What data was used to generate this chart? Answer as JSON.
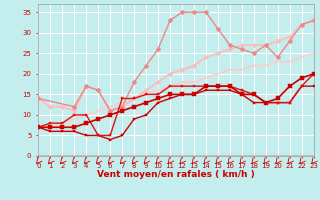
{
  "xlabel": "Vent moyen/en rafales ( km/h )",
  "xlim": [
    0,
    23
  ],
  "ylim": [
    0,
    37
  ],
  "yticks": [
    0,
    5,
    10,
    15,
    20,
    25,
    30,
    35
  ],
  "xticks": [
    0,
    1,
    2,
    3,
    4,
    5,
    6,
    7,
    8,
    9,
    10,
    11,
    12,
    13,
    14,
    15,
    16,
    17,
    18,
    19,
    20,
    21,
    22,
    23
  ],
  "background_color": "#c4eeed",
  "grid_color": "#ffffff",
  "series": [
    {
      "x": [
        0,
        1,
        2,
        3,
        4,
        5,
        6,
        7,
        8,
        9,
        10,
        11,
        12,
        13,
        14,
        15,
        16,
        17,
        18,
        19,
        20,
        21,
        22,
        23
      ],
      "y": [
        7,
        7,
        7,
        7,
        8,
        9,
        10,
        11,
        12,
        13,
        14,
        15,
        15,
        15,
        17,
        17,
        17,
        15,
        15,
        13,
        14,
        17,
        19,
        20
      ],
      "color": "#cc0000",
      "linewidth": 1.2,
      "markersize": 2.2,
      "marker": "s",
      "zorder": 5
    },
    {
      "x": [
        0,
        1,
        2,
        3,
        4,
        5,
        6,
        7,
        8,
        9,
        10,
        11,
        12,
        13,
        14,
        15,
        16,
        17,
        18,
        19,
        20,
        21,
        22,
        23
      ],
      "y": [
        7,
        6,
        6,
        6,
        5,
        5,
        4,
        5,
        9,
        10,
        13,
        14,
        15,
        15,
        16,
        16,
        16,
        15,
        13,
        13,
        13,
        13,
        17,
        17
      ],
      "color": "#cc0000",
      "linewidth": 1.0,
      "markersize": 2.0,
      "marker": "s",
      "zorder": 4
    },
    {
      "x": [
        0,
        1,
        2,
        3,
        4,
        5,
        6,
        7,
        8,
        9,
        10,
        11,
        12,
        13,
        14,
        15,
        16,
        17,
        18,
        19,
        20,
        21,
        22,
        23
      ],
      "y": [
        7,
        8,
        8,
        10,
        10,
        5,
        5,
        14,
        14,
        15,
        15,
        17,
        17,
        17,
        17,
        17,
        17,
        16,
        15,
        13,
        13,
        13,
        17,
        20
      ],
      "color": "#dd1111",
      "linewidth": 1.0,
      "markersize": 2.0,
      "marker": "s",
      "zorder": 4
    },
    {
      "x": [
        0,
        3,
        4,
        5,
        6,
        7,
        8,
        9,
        10,
        11,
        12,
        13,
        14,
        15,
        16,
        17,
        18,
        19,
        20,
        21,
        22,
        23
      ],
      "y": [
        14,
        12,
        17,
        16,
        11,
        12,
        18,
        22,
        26,
        33,
        35,
        35,
        35,
        31,
        27,
        26,
        25,
        27,
        24,
        28,
        32,
        33
      ],
      "color": "#ee8888",
      "linewidth": 1.0,
      "markersize": 2.5,
      "marker": "D",
      "zorder": 3
    },
    {
      "x": [
        0,
        1,
        2,
        3,
        4,
        5,
        6,
        7,
        8,
        9,
        10,
        11,
        12,
        13,
        14,
        15,
        16,
        17,
        18,
        19,
        20,
        21,
        22,
        23
      ],
      "y": [
        7,
        7,
        8,
        9,
        10,
        11,
        12,
        13,
        14,
        15,
        16,
        17,
        18,
        18,
        19,
        20,
        21,
        21,
        22,
        22,
        23,
        23,
        24,
        25
      ],
      "color": "#ffcccc",
      "linewidth": 1.3,
      "markersize": 0,
      "marker": "none",
      "zorder": 2
    },
    {
      "x": [
        0,
        1,
        2,
        3,
        4,
        5,
        6,
        7,
        8,
        9,
        10,
        11,
        12,
        13,
        14,
        15,
        16,
        17,
        18,
        19,
        20,
        21,
        22,
        23
      ],
      "y": [
        14,
        12,
        12,
        11,
        17,
        16,
        11,
        12,
        14,
        16,
        18,
        20,
        21,
        22,
        24,
        25,
        26,
        27,
        27,
        27,
        28,
        29,
        32,
        33
      ],
      "color": "#ffbbbb",
      "linewidth": 1.3,
      "markersize": 2.2,
      "marker": "D",
      "zorder": 2
    }
  ],
  "arrow_color": "#cc0000",
  "tick_color": "#cc0000",
  "label_color": "#cc0000",
  "tick_fontsize": 5.0,
  "xlabel_fontsize": 6.5
}
